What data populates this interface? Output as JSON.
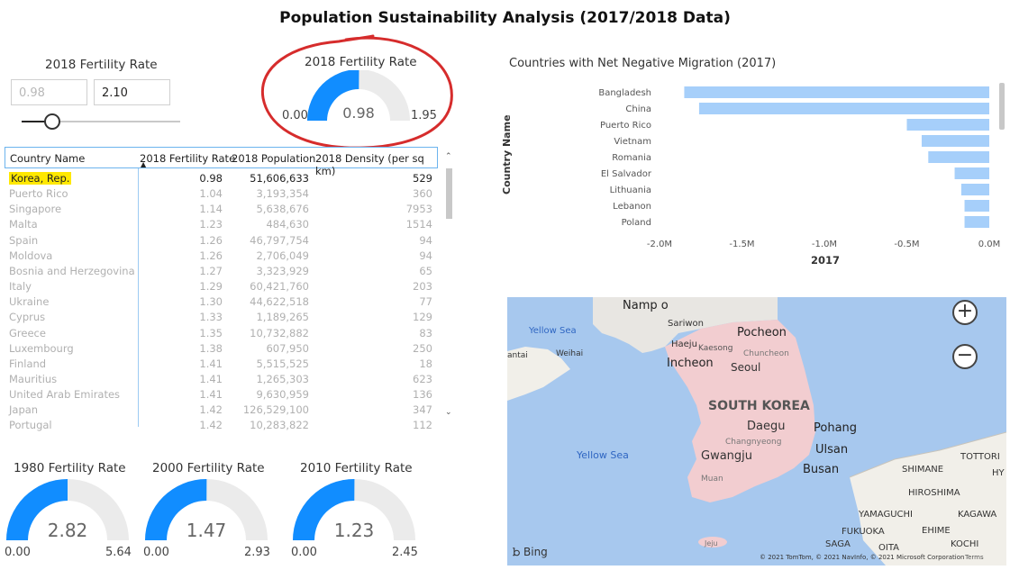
{
  "title": "Population Sustainability Analysis (2017/2018 Data)",
  "slicer": {
    "title": "2018 Fertility Rate",
    "min_value": "0.98",
    "max_value": "2.10",
    "slider_fraction": 0.0
  },
  "gauge_main": {
    "title": "2018 Fertility Rate",
    "min": "0.00",
    "value": "0.98",
    "max": "1.95",
    "fraction": 0.5026
  },
  "table": {
    "headers": [
      "Country Name",
      "2018 Fertility Rate",
      "2018 Population",
      "2018 Density (per sq km)"
    ],
    "sort_icon": "sort-ascending-icon",
    "rows": [
      {
        "country": "Korea, Rep.",
        "rate": "0.98",
        "pop": "51,606,633",
        "density": "529"
      },
      {
        "country": "Puerto Rico",
        "rate": "1.04",
        "pop": "3,193,354",
        "density": "360"
      },
      {
        "country": "Singapore",
        "rate": "1.14",
        "pop": "5,638,676",
        "density": "7953"
      },
      {
        "country": "Malta",
        "rate": "1.23",
        "pop": "484,630",
        "density": "1514"
      },
      {
        "country": "Spain",
        "rate": "1.26",
        "pop": "46,797,754",
        "density": "94"
      },
      {
        "country": "Moldova",
        "rate": "1.26",
        "pop": "2,706,049",
        "density": "94"
      },
      {
        "country": "Bosnia and Herzegovina",
        "rate": "1.27",
        "pop": "3,323,929",
        "density": "65"
      },
      {
        "country": "Italy",
        "rate": "1.29",
        "pop": "60,421,760",
        "density": "203"
      },
      {
        "country": "Ukraine",
        "rate": "1.30",
        "pop": "44,622,518",
        "density": "77"
      },
      {
        "country": "Cyprus",
        "rate": "1.33",
        "pop": "1,189,265",
        "density": "129"
      },
      {
        "country": "Greece",
        "rate": "1.35",
        "pop": "10,732,882",
        "density": "83"
      },
      {
        "country": "Luxembourg",
        "rate": "1.38",
        "pop": "607,950",
        "density": "250"
      },
      {
        "country": "Finland",
        "rate": "1.41",
        "pop": "5,515,525",
        "density": "18"
      },
      {
        "country": "Mauritius",
        "rate": "1.41",
        "pop": "1,265,303",
        "density": "623"
      },
      {
        "country": "United Arab Emirates",
        "rate": "1.41",
        "pop": "9,630,959",
        "density": "136"
      },
      {
        "country": "Japan",
        "rate": "1.42",
        "pop": "126,529,100",
        "density": "347"
      },
      {
        "country": "Portugal",
        "rate": "1.42",
        "pop": "10,283,822",
        "density": "112"
      }
    ]
  },
  "gauges": [
    {
      "title": "1980 Fertility Rate",
      "min": "0.00",
      "value": "2.82",
      "max": "5.64",
      "fraction": 0.5
    },
    {
      "title": "2000 Fertility Rate",
      "min": "0.00",
      "value": "1.47",
      "max": "2.93",
      "fraction": 0.5017
    },
    {
      "title": "2010 Fertility Rate",
      "min": "0.00",
      "value": "1.23",
      "max": "2.45",
      "fraction": 0.502
    }
  ],
  "migration_chart": {
    "title": "Countries with Net Negative Migration (2017)",
    "ylabel": "Country Name",
    "xlabel": "2017",
    "ticks": [
      "-2.0M",
      "-1.5M",
      "-1.0M",
      "-0.5M",
      "0.0M"
    ],
    "bar_color": "#a6cffa"
  },
  "chart_data": {
    "type": "bar",
    "orientation": "horizontal",
    "title": "Countries with Net Negative Migration (2017)",
    "xlabel": "2017",
    "ylabel": "Country Name",
    "xlim": [
      -2.0,
      0.0
    ],
    "unit": "M",
    "categories": [
      "Bangladesh",
      "China",
      "Puerto Rico",
      "Vietnam",
      "Romania",
      "El Salvador",
      "Lithuania",
      "Lebanon",
      "Poland"
    ],
    "values": [
      -1.85,
      -1.76,
      -0.5,
      -0.41,
      -0.37,
      -0.21,
      -0.17,
      -0.15,
      -0.15
    ]
  },
  "map": {
    "labels": {
      "nampo": "Namp o",
      "sariwon": "Sariwon",
      "yellow_sea_top": "Yellow Sea",
      "haeju": "Haeju",
      "kaesong": "Kaesong",
      "pocheon": "Pocheon",
      "chuncheon": "Chuncheon",
      "weihai": "Weihai",
      "fantai": "antai",
      "incheon": "Incheon",
      "seoul": "Seoul",
      "south_korea": "SOUTH KOREA",
      "daegu": "Daegu",
      "pohang": "Pohang",
      "changnyeong": "Changnyeong",
      "ulsan": "Ulsan",
      "yellow_sea_bottom": "Yellow Sea",
      "gwangju": "Gwangju",
      "busan": "Busan",
      "muan": "Muan",
      "jeju": "Jeju",
      "shimane": "SHIMANE",
      "tottori": "TOTTORI",
      "hyogo": "HY",
      "hiroshima": "HIROSHIMA",
      "yamaguchi": "YAMAGUCHI",
      "kagawa": "KAGAWA",
      "fukuoka": "FUKUOKA",
      "ehime": "EHIME",
      "saga": "SAGA",
      "oita": "OITA",
      "kochi": "KOCHI"
    },
    "bing": "Bing",
    "copyright": "© 2021 TomTom, © 2021 NavInfo, © 2021 Microsoft Corporation",
    "terms": "Terms",
    "zoom_in": "+",
    "zoom_out": "−"
  },
  "colors": {
    "gauge_fill": "#118dff",
    "gauge_track": "#ebebeb",
    "annotation": "#d62c2c",
    "map_water": "#a7c8ee",
    "korea_land": "#f2cdd0"
  }
}
